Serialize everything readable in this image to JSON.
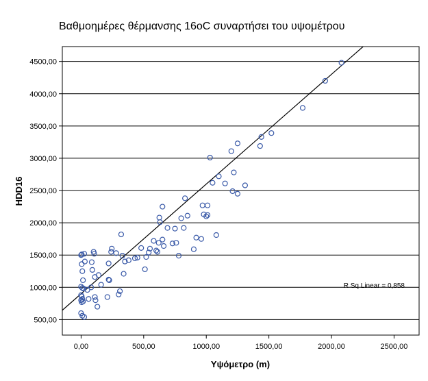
{
  "chart_data": {
    "type": "scatter",
    "title": "Βαθμοημέρες θέρμανσης 16oC συναρτήσει του υψομέτρου",
    "xlabel": "Υψόμετρο (m)",
    "ylabel": "HDD16",
    "xlim": [
      -150,
      2700
    ],
    "ylim": [
      260,
      4730
    ],
    "x_ticks": [
      0,
      500,
      1000,
      1500,
      2000,
      2500
    ],
    "x_tick_labels": [
      "0,00",
      "500,00",
      "1000,00",
      "1500,00",
      "2000,00",
      "2500,00"
    ],
    "y_ticks": [
      500,
      1000,
      1500,
      2000,
      2500,
      3000,
      3500,
      4000,
      4500
    ],
    "y_tick_labels": [
      "500,00",
      "1000,00",
      "1500,00",
      "2000,00",
      "2500,00",
      "3000,00",
      "3500,00",
      "4000,00",
      "4500,00"
    ],
    "grid": "horizontal",
    "background": "#ffffff",
    "marker_color": "#3a5aa8",
    "fit_line": {
      "intercept": 900,
      "slope": 1.7
    },
    "annotation": "R Sq Linear = 0,858",
    "points": [
      [
        0,
        1500
      ],
      [
        5,
        1510
      ],
      [
        25,
        1520
      ],
      [
        30,
        1400
      ],
      [
        5,
        1360
      ],
      [
        10,
        1250
      ],
      [
        15,
        1110
      ],
      [
        0,
        1010
      ],
      [
        10,
        990
      ],
      [
        20,
        980
      ],
      [
        0,
        880
      ],
      [
        5,
        860
      ],
      [
        10,
        820
      ],
      [
        0,
        800
      ],
      [
        15,
        780
      ],
      [
        5,
        770
      ],
      [
        0,
        600
      ],
      [
        10,
        560
      ],
      [
        25,
        540
      ],
      [
        50,
        960
      ],
      [
        60,
        820
      ],
      [
        80,
        1000
      ],
      [
        85,
        1390
      ],
      [
        90,
        1270
      ],
      [
        100,
        1550
      ],
      [
        105,
        1520
      ],
      [
        110,
        1160
      ],
      [
        110,
        850
      ],
      [
        115,
        800
      ],
      [
        130,
        700
      ],
      [
        140,
        1190
      ],
      [
        160,
        1040
      ],
      [
        210,
        850
      ],
      [
        220,
        1120
      ],
      [
        225,
        1110
      ],
      [
        220,
        1370
      ],
      [
        240,
        1550
      ],
      [
        245,
        1600
      ],
      [
        280,
        1530
      ],
      [
        300,
        890
      ],
      [
        310,
        940
      ],
      [
        320,
        1820
      ],
      [
        330,
        1490
      ],
      [
        340,
        1210
      ],
      [
        350,
        1400
      ],
      [
        380,
        1420
      ],
      [
        430,
        1450
      ],
      [
        450,
        1460
      ],
      [
        480,
        1610
      ],
      [
        510,
        1280
      ],
      [
        520,
        1470
      ],
      [
        540,
        1540
      ],
      [
        550,
        1600
      ],
      [
        580,
        1720
      ],
      [
        600,
        1570
      ],
      [
        610,
        1550
      ],
      [
        620,
        1690
      ],
      [
        625,
        2080
      ],
      [
        630,
        2010
      ],
      [
        650,
        2250
      ],
      [
        650,
        1740
      ],
      [
        660,
        1640
      ],
      [
        690,
        1920
      ],
      [
        730,
        1680
      ],
      [
        750,
        1910
      ],
      [
        760,
        1690
      ],
      [
        780,
        1490
      ],
      [
        800,
        2070
      ],
      [
        820,
        1920
      ],
      [
        830,
        2380
      ],
      [
        850,
        2110
      ],
      [
        900,
        1590
      ],
      [
        920,
        1770
      ],
      [
        960,
        1750
      ],
      [
        970,
        2270
      ],
      [
        980,
        2130
      ],
      [
        1000,
        2100
      ],
      [
        1010,
        2120
      ],
      [
        1010,
        2270
      ],
      [
        1030,
        3010
      ],
      [
        1050,
        2620
      ],
      [
        1080,
        1810
      ],
      [
        1100,
        2720
      ],
      [
        1150,
        2610
      ],
      [
        1200,
        3110
      ],
      [
        1210,
        2490
      ],
      [
        1220,
        2780
      ],
      [
        1250,
        2450
      ],
      [
        1250,
        3230
      ],
      [
        1310,
        2580
      ],
      [
        1430,
        3190
      ],
      [
        1440,
        3330
      ],
      [
        1520,
        3390
      ],
      [
        1770,
        3780
      ],
      [
        1950,
        4200
      ],
      [
        2080,
        4480
      ]
    ]
  }
}
